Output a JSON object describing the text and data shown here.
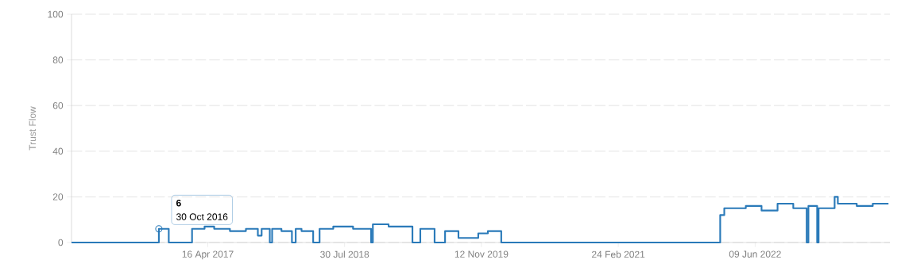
{
  "chart_data": {
    "type": "step",
    "ylabel": "Trust Flow",
    "color": "#2a7ab9",
    "line_style": "solid",
    "marker": "none",
    "grid": "y",
    "xlim": [
      "2016-01-04",
      "2023-09-15"
    ],
    "ylim": [
      0,
      100
    ],
    "yticks": [
      0,
      20,
      40,
      60,
      80,
      100
    ],
    "xticks": [
      {
        "value": "2017-04-16",
        "label": "16 Apr 2017"
      },
      {
        "value": "2018-07-30",
        "label": "30 Jul 2018"
      },
      {
        "value": "2019-11-12",
        "label": "12 Nov 2019"
      },
      {
        "value": "2021-02-24",
        "label": "24 Feb 2021"
      },
      {
        "value": "2022-06-09",
        "label": "09 Jun 2022"
      }
    ],
    "x": [
      "2016-01-04",
      "2016-10-30",
      "2016-12-03",
      "2017-02-21",
      "2017-04-05",
      "2017-05-08",
      "2017-07-01",
      "2017-08-25",
      "2017-10-05",
      "2017-10-18",
      "2017-11-15",
      "2017-11-23",
      "2017-12-25",
      "2018-01-30",
      "2018-02-12",
      "2018-03-04",
      "2018-04-13",
      "2018-05-05",
      "2018-06-21",
      "2018-08-28",
      "2018-10-29",
      "2018-11-04",
      "2018-12-28",
      "2019-03-20",
      "2019-04-16",
      "2019-06-04",
      "2019-07-10",
      "2019-08-25",
      "2019-11-01",
      "2019-12-04",
      "2020-01-19",
      "2022-02-09",
      "2022-02-23",
      "2022-05-08",
      "2022-07-01",
      "2022-08-25",
      "2022-10-18",
      "2022-12-03",
      "2022-12-09",
      "2023-01-08",
      "2023-01-13",
      "2023-03-09",
      "2023-03-20",
      "2023-05-24",
      "2023-07-18",
      "2023-09-10"
    ],
    "values": [
      0,
      6,
      0,
      6,
      7,
      6,
      5,
      6,
      3,
      6,
      0,
      6,
      5,
      0,
      6,
      5,
      0,
      6,
      7,
      6,
      0,
      8,
      7,
      0,
      6,
      0,
      5,
      2,
      4,
      5,
      0,
      12,
      15,
      16,
      14,
      17,
      15,
      0,
      16,
      0,
      15,
      20,
      17,
      16,
      17,
      17
    ],
    "annotations": [
      {
        "text": "6",
        "x": "2016-10-30",
        "y": 6
      },
      {
        "text": "30 Oct 2016",
        "x": "2016-10-30",
        "y": 6
      }
    ]
  }
}
